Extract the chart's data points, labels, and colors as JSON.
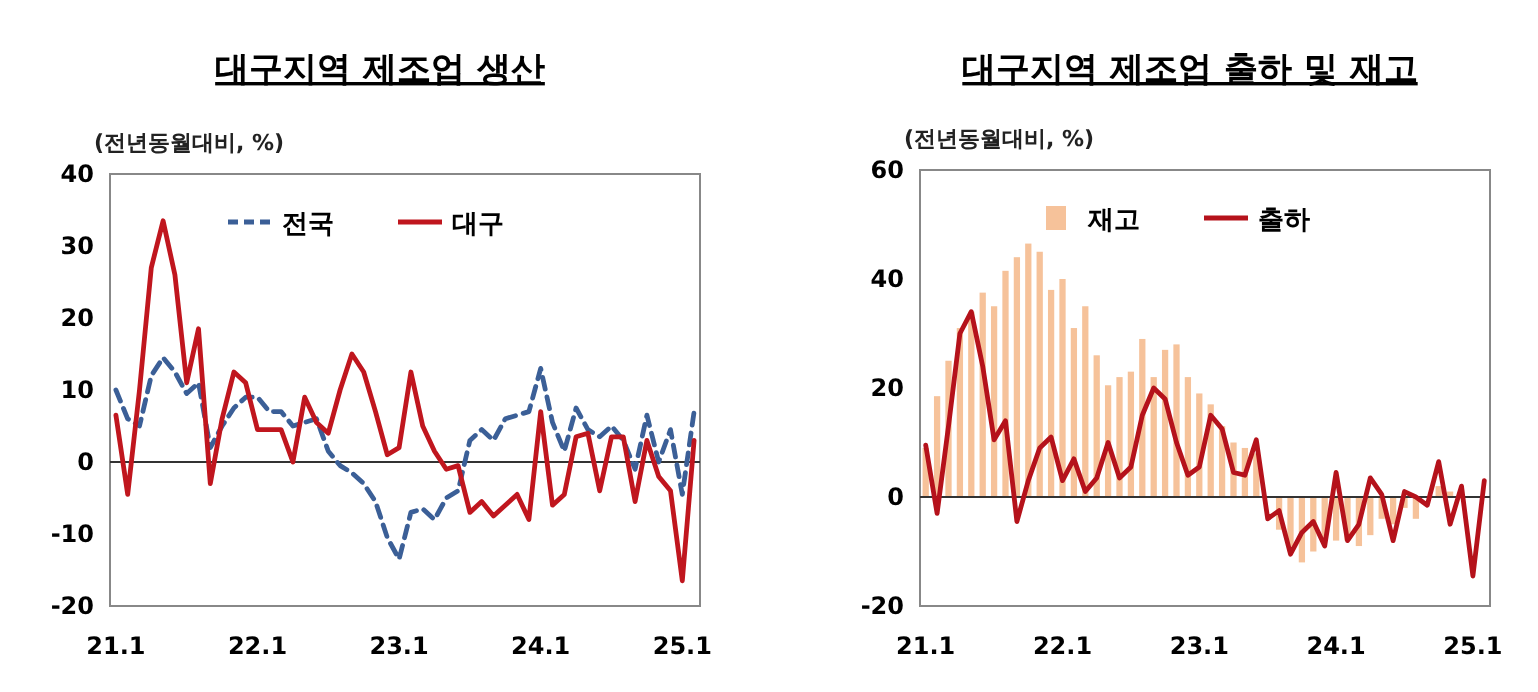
{
  "chart_data": [
    {
      "type": "line",
      "title": "대구지역 제조업 생산",
      "ylabel": "(전년동월대비, %)",
      "categories": [
        "21.1",
        null,
        null,
        null,
        null,
        null,
        null,
        null,
        null,
        null,
        null,
        null,
        "22.1",
        null,
        null,
        null,
        null,
        null,
        null,
        null,
        null,
        null,
        null,
        null,
        "23.1",
        null,
        null,
        null,
        null,
        null,
        null,
        null,
        null,
        null,
        null,
        null,
        "24.1",
        null,
        null,
        null,
        null,
        null,
        null,
        null,
        null,
        null,
        null,
        null,
        "25.1",
        null
      ],
      "ylim": [
        -20,
        40
      ],
      "yticks": [
        -20,
        -10,
        0,
        10,
        20,
        30,
        40
      ],
      "grid": false,
      "legend": "top",
      "ref_lines": [
        {
          "axis": "y",
          "value": 0,
          "color": "#333333"
        }
      ],
      "series": [
        {
          "name": "전국",
          "color": "#3b5f97",
          "line_style": "dashed",
          "values": [
            10,
            6,
            5,
            12,
            14.5,
            12.5,
            9.5,
            11,
            2,
            5,
            7.5,
            9,
            9,
            7,
            7,
            5,
            5.5,
            6,
            1.5,
            -0.5,
            -1.5,
            -3,
            -5.5,
            -10.5,
            -13.5,
            -7,
            -6.5,
            -8,
            -5,
            -4,
            3,
            4.5,
            3,
            6,
            6.5,
            7,
            13,
            5.5,
            1.5,
            7.5,
            4.5,
            3.5,
            5,
            3,
            -1,
            6.5,
            0,
            4.5,
            -4.5,
            7
          ]
        },
        {
          "name": "대구",
          "color": "#c0161e",
          "line_style": "solid",
          "values": [
            6.5,
            -4.5,
            10,
            27,
            33.5,
            26,
            11,
            18.5,
            -3,
            6,
            12.5,
            11,
            4.5,
            4.5,
            4.5,
            0,
            9,
            5.5,
            4,
            10,
            15,
            12.5,
            7,
            1,
            2,
            12.5,
            5,
            1.5,
            -1,
            -0.5,
            -7,
            -5.5,
            -7.5,
            -6,
            -4.5,
            -8,
            7,
            -6,
            -4.5,
            3.5,
            4,
            -4,
            3.5,
            3.5,
            -5.5,
            3,
            -2,
            -4,
            -16.5,
            3
          ]
        }
      ]
    },
    {
      "type": "bar",
      "title": "대구지역 제조업 출하 및 재고",
      "ylabel": "(전년동월대비, %)",
      "categories": [
        "21.1",
        null,
        null,
        null,
        null,
        null,
        null,
        null,
        null,
        null,
        null,
        null,
        "22.1",
        null,
        null,
        null,
        null,
        null,
        null,
        null,
        null,
        null,
        null,
        null,
        "23.1",
        null,
        null,
        null,
        null,
        null,
        null,
        null,
        null,
        null,
        null,
        null,
        "24.1",
        null,
        null,
        null,
        null,
        null,
        null,
        null,
        null,
        null,
        null,
        null,
        "25.1",
        null
      ],
      "ylim": [
        -20,
        60
      ],
      "yticks": [
        -20,
        0,
        20,
        40,
        60
      ],
      "grid": false,
      "legend": "top",
      "ref_lines": [
        {
          "axis": "y",
          "value": 0,
          "color": "#333333"
        }
      ],
      "series": [
        {
          "name": "재고",
          "color": "#f6c29a",
          "values": [
            9,
            18.5,
            25,
            31,
            34,
            37.5,
            35,
            41.5,
            44,
            46.5,
            45,
            38,
            40,
            31,
            35,
            26,
            20.5,
            22,
            23,
            29,
            22,
            27,
            28,
            22,
            19,
            17,
            13,
            10,
            9,
            8,
            0,
            -6,
            -10,
            -12,
            -10,
            -8,
            -8,
            -8,
            -9,
            -7,
            -4,
            -5,
            -2,
            -4,
            null,
            2,
            1,
            0,
            0,
            null
          ]
        },
        {
          "name": "출하",
          "type": "line",
          "color": "#b5121b",
          "line_style": "solid",
          "values": [
            9.5,
            -3,
            13,
            30,
            34,
            24,
            10.5,
            14,
            -4.5,
            3,
            9,
            11,
            3,
            7,
            1,
            3.5,
            10,
            3.5,
            5.5,
            15,
            20,
            18,
            10,
            4,
            5.5,
            15,
            12.5,
            4.5,
            4,
            10.5,
            -4,
            -2.5,
            -10.5,
            -6.5,
            -4.5,
            -9,
            4.5,
            -8,
            -5,
            3.5,
            0.5,
            -8,
            1,
            0,
            -1.5,
            6.5,
            -5,
            2,
            -14.5,
            3
          ]
        }
      ]
    }
  ]
}
